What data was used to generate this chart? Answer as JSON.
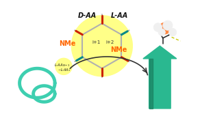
{
  "background_color": "#ffffff",
  "helix_color": "#3ecfb0",
  "helix_lw": 3.5,
  "sheet_arrow_color": "#2ab890",
  "sheet_arrow_dark": "#1a8060",
  "highlight_color": "#ffff88",
  "bond_color": "#b0b0b0",
  "bond_lw": 1.5,
  "carbonyl_color": "#cc2200",
  "nitrogen_color": "#008888",
  "nme_color": "#ff6600",
  "label_daa": "D-AA",
  "label_laa": "L-AA",
  "label_nme": "NMe",
  "label_nme2": "NMe",
  "label_i1": "i+1",
  "label_i2": "i+2",
  "curve_arrow_color": "#333333",
  "figsize": [
    2.92,
    1.89
  ],
  "dpi": 100
}
